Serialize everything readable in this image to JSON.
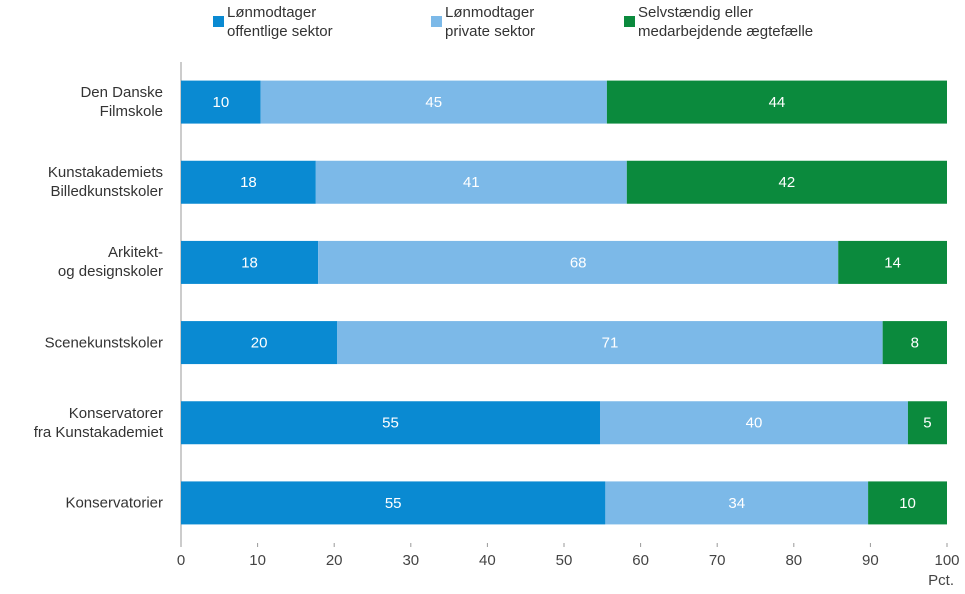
{
  "chart_data": {
    "type": "stacked-bar-horizontal",
    "categories": [
      "Den Danske\nFilmskole",
      "Kunstakademiets\nBilledkunstskoler",
      "Arkitekt-\nog designskoler",
      "Scenekunstskoler",
      "Konservatorer\nfra Kunstakademiet",
      "Konservatorier"
    ],
    "series": [
      {
        "name": "Lønmodtager\noffentlige sektor",
        "color": "#0a8ad2",
        "values": [
          10.4,
          17.6,
          17.9,
          20.4,
          54.7,
          55.4
        ],
        "value_labels": [
          "10",
          "18",
          "18",
          "20",
          "55",
          "55"
        ]
      },
      {
        "name": "Lønmodtager\nprivate sektor",
        "color": "#7cb9e8",
        "values": [
          45.2,
          40.6,
          67.9,
          71.2,
          40.2,
          34.3
        ],
        "value_labels": [
          "45",
          "41",
          "68",
          "71",
          "40",
          "34"
        ]
      },
      {
        "name": "Selvstændig eller\nmedarbejdende ægtefælle",
        "color": "#0b8a3d",
        "values": [
          44.4,
          41.8,
          14.2,
          8.4,
          5.1,
          10.3
        ],
        "value_labels": [
          "44",
          "42",
          "14",
          "8",
          "5",
          "10"
        ]
      }
    ],
    "x_label": "Pct.",
    "xlim": [
      0,
      100
    ],
    "xticks": [
      0,
      10,
      20,
      30,
      40,
      50,
      60,
      70,
      80,
      90,
      100
    ]
  }
}
